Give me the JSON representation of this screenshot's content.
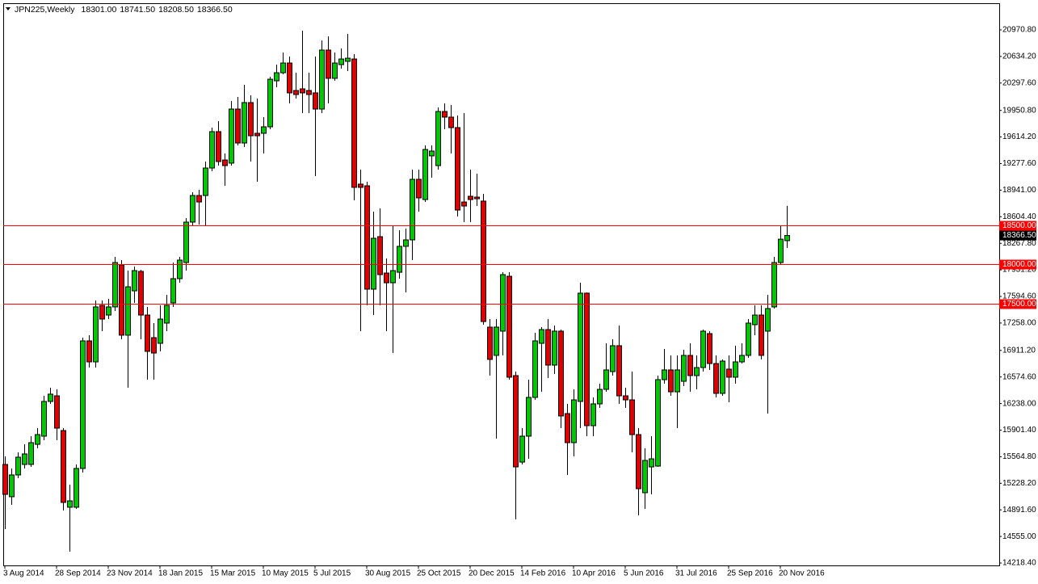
{
  "chart_data": {
    "type": "candlestick",
    "title": "JPN225,Weekly",
    "header_values": [
      "18301.00",
      "18741.50",
      "18208.50",
      "18366.50"
    ],
    "categories": [
      "3 Aug 2014",
      null,
      null,
      null,
      null,
      null,
      null,
      null,
      "28 Sep 2014",
      null,
      null,
      null,
      null,
      null,
      null,
      null,
      "23 Nov 2014",
      null,
      null,
      null,
      null,
      null,
      null,
      null,
      "18 Jan 2015",
      null,
      null,
      null,
      null,
      null,
      null,
      null,
      "15 Mar 2015",
      null,
      null,
      null,
      null,
      null,
      null,
      null,
      "10 May 2015",
      null,
      null,
      null,
      null,
      null,
      null,
      null,
      "5 Jul 2015",
      null,
      null,
      null,
      null,
      null,
      null,
      null,
      "30 Aug 2015",
      null,
      null,
      null,
      null,
      null,
      null,
      null,
      "25 Oct 2015",
      null,
      null,
      null,
      null,
      null,
      null,
      null,
      "20 Dec 2015",
      null,
      null,
      null,
      null,
      null,
      null,
      null,
      "14 Feb 2016",
      null,
      null,
      null,
      null,
      null,
      null,
      null,
      "10 Apr 2016",
      null,
      null,
      null,
      null,
      null,
      null,
      null,
      "5 Jun 2016",
      null,
      null,
      null,
      null,
      null,
      null,
      null,
      "31 Jul 2016",
      null,
      null,
      null,
      null,
      null,
      null,
      null,
      "25 Sep 2016",
      null,
      null,
      null,
      null,
      null,
      null,
      null,
      "20 Nov 2016",
      null
    ],
    "open": [
      15467,
      15058,
      15334,
      15467,
      15467,
      15722,
      15825,
      16265,
      16336,
      15896,
      14925,
      14925,
      15416,
      17032,
      16766,
      17482,
      17359,
      17462,
      17994,
      17104,
      17666,
      17912,
      17359,
      17073,
      17001,
      17257,
      17513,
      17820,
      18024,
      18536,
      18873,
      18873,
      19221,
      19682,
      19323,
      19283,
      19968,
      19538,
      20050,
      19661,
      19661,
      19743,
      20326,
      20428,
      20551,
      20203,
      20224,
      20203,
      20173,
      19968,
      20715,
      20357,
      20531,
      20572,
      20602,
      19017,
      18996,
      17687,
      18352,
      17891,
      17768,
      17901,
      18229,
      18311,
      19078,
      18822,
      19375,
      19252,
      19937,
      19866,
      19733,
      18791,
      18863,
      18853,
      18802,
      17206,
      16848,
      17155,
      17850,
      16592,
      15497,
      15825,
      16316,
      17001,
      17175,
      16725,
      17155,
      16111,
      15743,
      16265,
      17636,
      15958,
      16234,
      16418,
      16643,
      16971,
      16336,
      16285,
      15845,
      15109,
      15436,
      15446,
      16541,
      16664,
      16387,
      16520,
      16848,
      16592,
      16694,
      17124,
      16745,
      16367,
      16674,
      16572,
      16766,
      16848,
      17237,
      17359,
      17155,
      17462,
      18024,
      18301
    ],
    "high": [
      15569,
      15416,
      15620,
      15722,
      15825,
      15927,
      16336,
      16439,
      16418,
      15927,
      15211,
      15467,
      17073,
      17104,
      17543,
      17543,
      17564,
      18096,
      18055,
      17922,
      17973,
      17932,
      17462,
      17257,
      17482,
      17615,
      18024,
      18096,
      18587,
      18914,
      18945,
      19303,
      19733,
      19814,
      19405,
      20070,
      20121,
      20275,
      20142,
      20101,
      19866,
      20377,
      20531,
      20684,
      20633,
      20428,
      20960,
      20428,
      20633,
      20837,
      20889,
      20684,
      20735,
      20919,
      20664,
      19201,
      19047,
      18669,
      18710,
      18075,
      18485,
      18433,
      18454,
      19201,
      19201,
      19508,
      19508,
      19988,
      20040,
      20019,
      19886,
      19917,
      19201,
      19150,
      18894,
      17308,
      17308,
      17901,
      17901,
      16643,
      15927,
      16541,
      17134,
      17206,
      17308,
      17226,
      17175,
      16234,
      16418,
      17768,
      17646,
      16316,
      16490,
      17001,
      17052,
      17226,
      16439,
      16643,
      15927,
      15671,
      15825,
      16592,
      16930,
      16848,
      16848,
      16919,
      17001,
      16848,
      17175,
      17155,
      16848,
      16797,
      16848,
      16971,
      17001,
      17308,
      17482,
      17482,
      17615,
      18096,
      18485,
      18741.5
    ],
    "low": [
      14648,
      14955,
      15293,
      15416,
      15436,
      15671,
      15774,
      16234,
      15774,
      14884,
      14362,
      14904,
      15364,
      16694,
      16694,
      17155,
      17308,
      17410,
      17052,
      16439,
      17513,
      17052,
      16541,
      16541,
      16899,
      17155,
      17462,
      17768,
      17922,
      18485,
      18505,
      18485,
      19180,
      19252,
      18996,
      19252,
      19508,
      19487,
      19303,
      19047,
      19405,
      19712,
      20244,
      20408,
      20040,
      20101,
      19917,
      19917,
      19119,
      19917,
      20040,
      20326,
      20479,
      20449,
      18812,
      17155,
      17482,
      17359,
      17482,
      17155,
      16878,
      17820,
      17646,
      18055,
      18669,
      18791,
      19098,
      19201,
      19712,
      19405,
      18607,
      18536,
      18536,
      18740,
      17237,
      16592,
      15794,
      16848,
      16541,
      14771,
      15467,
      15538,
      16285,
      16387,
      16561,
      16613,
      15927,
      15334,
      15569,
      15927,
      15825,
      15825,
      16183,
      16387,
      16592,
      16234,
      16183,
      15620,
      14822,
      14904,
      15088,
      15436,
      16490,
      16336,
      15927,
      16459,
      16387,
      16418,
      16643,
      16664,
      16316,
      16336,
      16254,
      16490,
      16745,
      16817,
      17104,
      16797,
      16111,
      17441,
      18004,
      18208.5
    ],
    "close": [
      15088,
      15334,
      15559,
      15600,
      15743,
      15845,
      16265,
      16357,
      15927,
      14986,
      15006,
      15416,
      17032,
      16766,
      17462,
      17308,
      17462,
      18024,
      17104,
      17717,
      17922,
      17359,
      16899,
      16878,
      17308,
      17482,
      17820,
      18055,
      18536,
      18873,
      18791,
      19221,
      19682,
      19303,
      19252,
      19968,
      19538,
      20050,
      19630,
      19630,
      19743,
      20346,
      20428,
      20551,
      20173,
      20152,
      20173,
      20152,
      19968,
      20715,
      20357,
      20551,
      20602,
      20612,
      18976,
      18976,
      17687,
      18331,
      17871,
      17768,
      17922,
      18229,
      18311,
      19078,
      18843,
      19456,
      19436,
      19937,
      19866,
      19733,
      18689,
      18740,
      18822,
      18832,
      17277,
      16797,
      17206,
      17871,
      16572,
      15436,
      15825,
      16316,
      17032,
      17175,
      16725,
      17155,
      16081,
      15743,
      16285,
      17636,
      15958,
      16234,
      16418,
      16664,
      16971,
      16336,
      16285,
      15845,
      15160,
      15518,
      15538,
      16541,
      16664,
      16387,
      16664,
      16848,
      16592,
      16694,
      17155,
      16745,
      16367,
      16776,
      16572,
      16766,
      16848,
      17257,
      17359,
      16848,
      17441,
      18024,
      18320,
      18366.5
    ],
    "up_color": "#00c800",
    "down_color": "#e00000",
    "ylim": [
      14188,
      21298
    ],
    "yticks": [
      {
        "value": 20970.8,
        "label": "20970.80"
      },
      {
        "value": 20634.2,
        "label": "20634.20"
      },
      {
        "value": 20297.6,
        "label": "20297.60"
      },
      {
        "value": 19950.8,
        "label": "19950.80"
      },
      {
        "value": 19614.2,
        "label": "19614.20"
      },
      {
        "value": 19277.6,
        "label": "19277.60"
      },
      {
        "value": 18941,
        "label": "18941.00"
      },
      {
        "value": 18604.4,
        "label": "18604.40"
      },
      {
        "value": 18267.8,
        "label": "18267.80"
      },
      {
        "value": 17931.2,
        "label": "17931.20"
      },
      {
        "value": 17594.6,
        "label": "17594.60"
      },
      {
        "value": 17258,
        "label": "17258.00"
      },
      {
        "value": 16911.2,
        "label": "16911.20"
      },
      {
        "value": 16574.6,
        "label": "16574.60"
      },
      {
        "value": 16238,
        "label": "16238.00"
      },
      {
        "value": 15901.4,
        "label": "15901.40"
      },
      {
        "value": 15564.8,
        "label": "15564.80"
      },
      {
        "value": 15228.2,
        "label": "15228.20"
      },
      {
        "value": 14891.6,
        "label": "14891.60"
      },
      {
        "value": 14555,
        "label": "14555.00"
      },
      {
        "value": 14218.4,
        "label": "14218.40"
      }
    ],
    "levels": [
      {
        "value": 18500,
        "label": "18500.00"
      },
      {
        "value": 18000,
        "label": "18000.00"
      },
      {
        "value": 17500,
        "label": "17500.00"
      }
    ],
    "level_color": "#ff0000"
  }
}
